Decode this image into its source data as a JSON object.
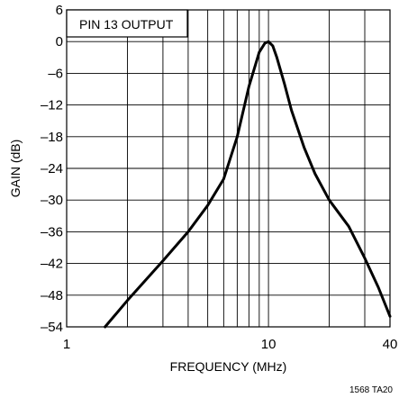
{
  "chart_data": {
    "type": "line",
    "xscale": "log",
    "xlim": [
      1,
      40
    ],
    "ylim": [
      -54,
      6
    ],
    "xlabel": "FREQUENCY (MHz)",
    "ylabel": "GAIN (dB)",
    "grid": true,
    "legend_box": {
      "text": "PIN 13 OUTPUT",
      "placement": "top-left"
    },
    "footnote": "1568 TA20",
    "x_ticks": [
      {
        "value": 1,
        "label": "1"
      },
      {
        "value": 10,
        "label": "10"
      },
      {
        "value": 40,
        "label": "40"
      }
    ],
    "y_ticks": [
      {
        "value": 6,
        "label": "6"
      },
      {
        "value": 0,
        "label": "0"
      },
      {
        "value": -6,
        "label": "–6"
      },
      {
        "value": -12,
        "label": "–12"
      },
      {
        "value": -18,
        "label": "–18"
      },
      {
        "value": -24,
        "label": "–24"
      },
      {
        "value": -30,
        "label": "–30"
      },
      {
        "value": -36,
        "label": "–36"
      },
      {
        "value": -42,
        "label": "–42"
      },
      {
        "value": -48,
        "label": "–48"
      },
      {
        "value": -54,
        "label": "–54"
      }
    ],
    "x_gridlines": [
      2,
      3,
      4,
      5,
      6,
      7,
      8,
      9,
      10,
      20,
      30
    ],
    "series": [
      {
        "values": [
          [
            1.55,
            -54
          ],
          [
            2.0,
            -49
          ],
          [
            3.0,
            -41.5
          ],
          [
            4.0,
            -36
          ],
          [
            5.0,
            -31
          ],
          [
            6.0,
            -26
          ],
          [
            7.0,
            -18
          ],
          [
            8.0,
            -8.5
          ],
          [
            9.0,
            -2
          ],
          [
            9.6,
            -0.3
          ],
          [
            10.0,
            0
          ],
          [
            10.5,
            -0.8
          ],
          [
            11.0,
            -3
          ],
          [
            12.0,
            -8
          ],
          [
            13.0,
            -13
          ],
          [
            15.0,
            -20
          ],
          [
            17.0,
            -25
          ],
          [
            20.0,
            -30
          ],
          [
            25.0,
            -35
          ],
          [
            30.0,
            -41
          ],
          [
            35.0,
            -46.5
          ],
          [
            40.0,
            -52
          ]
        ]
      }
    ]
  }
}
